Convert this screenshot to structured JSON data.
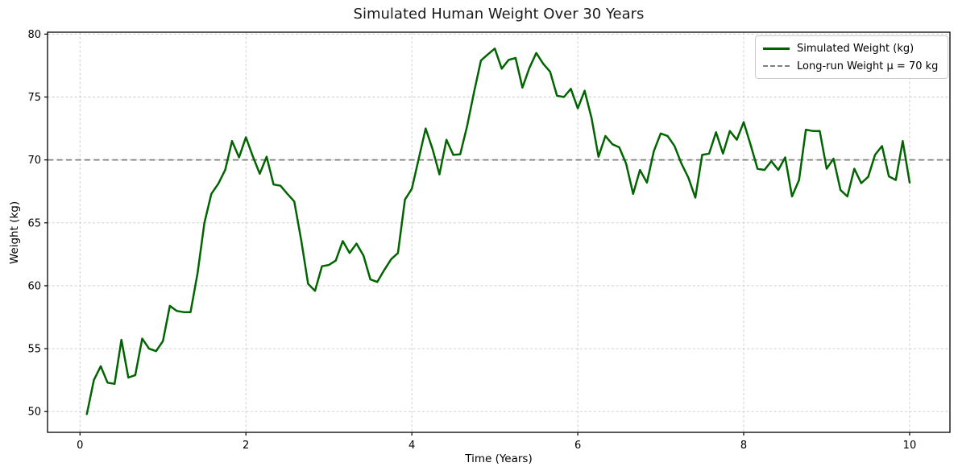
{
  "colors": {
    "series": "#006400",
    "mean_line": "#7f7f7f",
    "grid": "#c9c9c9",
    "spine": "#000000",
    "background": "#ffffff",
    "text": "#000000",
    "legend_border": "#cccccc"
  },
  "chart_data": {
    "type": "line",
    "title": "Simulated Human Weight Over 30 Years",
    "xlabel": "Time (Years)",
    "ylabel": "Weight (kg)",
    "x_ticks": [
      0,
      2,
      4,
      6,
      8,
      10
    ],
    "y_ticks": [
      50,
      55,
      60,
      65,
      70,
      75,
      80
    ],
    "xlim": [
      -0.391,
      10.486
    ],
    "ylim": [
      48.35,
      80.15
    ],
    "grid": true,
    "legend_position": "upper right",
    "series": [
      {
        "name": "Simulated Weight (kg)",
        "style": "solid",
        "color": "#006400",
        "x": [
          0.083,
          0.167,
          0.25,
          0.333,
          0.417,
          0.5,
          0.583,
          0.667,
          0.75,
          0.833,
          0.917,
          1.0,
          1.083,
          1.167,
          1.25,
          1.333,
          1.417,
          1.5,
          1.583,
          1.667,
          1.75,
          1.833,
          1.917,
          2.0,
          2.083,
          2.167,
          2.25,
          2.333,
          2.417,
          2.5,
          2.583,
          2.667,
          2.75,
          2.833,
          2.917,
          3.0,
          3.083,
          3.167,
          3.25,
          3.333,
          3.417,
          3.5,
          3.583,
          3.667,
          3.75,
          3.833,
          3.917,
          4.0,
          4.083,
          4.167,
          4.25,
          4.333,
          4.417,
          4.5,
          4.583,
          4.667,
          4.75,
          4.833,
          4.917,
          5.0,
          5.083,
          5.167,
          5.25,
          5.333,
          5.417,
          5.5,
          5.583,
          5.667,
          5.75,
          5.833,
          5.917,
          6.0,
          6.083,
          6.167,
          6.25,
          6.333,
          6.417,
          6.5,
          6.583,
          6.667,
          6.75,
          6.833,
          6.917,
          7.0,
          7.083,
          7.167,
          7.25,
          7.333,
          7.417,
          7.5,
          7.583,
          7.667,
          7.75,
          7.833,
          7.917,
          8.0,
          8.083,
          8.167,
          8.25,
          8.333,
          8.417,
          8.5,
          8.583,
          8.667,
          8.75,
          8.833,
          8.917,
          9.0,
          9.083,
          9.167,
          9.25,
          9.333,
          9.417,
          9.5,
          9.583,
          9.667,
          9.75,
          9.833,
          9.917,
          10.0
        ],
        "y": [
          49.8,
          52.5,
          53.6,
          52.3,
          52.2,
          55.7,
          52.7,
          52.9,
          55.8,
          55.0,
          54.8,
          55.6,
          58.4,
          58.0,
          57.9,
          57.9,
          61.0,
          65.0,
          67.3,
          68.1,
          69.2,
          71.5,
          70.2,
          71.8,
          70.3,
          68.9,
          70.25,
          68.05,
          67.95,
          67.3,
          66.7,
          63.6,
          60.15,
          59.6,
          61.55,
          61.65,
          62.0,
          63.55,
          62.6,
          63.35,
          62.4,
          60.5,
          60.3,
          61.25,
          62.1,
          62.6,
          66.85,
          67.7,
          70.1,
          72.5,
          70.85,
          68.85,
          71.6,
          70.4,
          70.45,
          72.7,
          75.4,
          77.9,
          78.4,
          78.85,
          77.25,
          77.95,
          78.1,
          75.75,
          77.3,
          78.5,
          77.65,
          77.0,
          75.1,
          75.0,
          75.65,
          74.1,
          75.5,
          73.3,
          70.25,
          71.9,
          71.25,
          71.0,
          69.7,
          67.3,
          69.2,
          68.2,
          70.7,
          72.1,
          71.9,
          71.1,
          69.7,
          68.6,
          67.0,
          70.4,
          70.5,
          72.2,
          70.5,
          72.3,
          71.6,
          73.0,
          71.2,
          69.3,
          69.2,
          69.9,
          69.2,
          70.2,
          67.1,
          68.4,
          72.4,
          72.3,
          72.3,
          69.3,
          70.1,
          67.6,
          67.1,
          69.3,
          68.15,
          68.65,
          70.4,
          71.1,
          68.7,
          68.4,
          71.5,
          68.2
        ]
      },
      {
        "name": "Long-run Weight μ = 70 kg",
        "style": "dashed",
        "color": "#7f7f7f",
        "y_const": 70
      }
    ]
  }
}
